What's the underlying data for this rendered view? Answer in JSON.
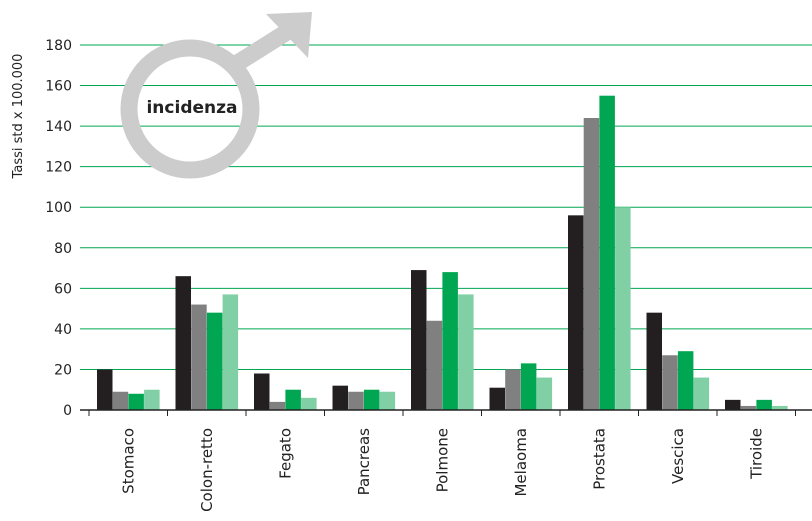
{
  "chart_data": {
    "type": "bar",
    "title": "",
    "badge_text": "incidenza",
    "badge_icon": "male-symbol-icon",
    "xlabel": "",
    "ylabel": "Tassi std x 100.000",
    "ylim": [
      0,
      180
    ],
    "yticks": [
      0,
      20,
      40,
      60,
      80,
      100,
      120,
      140,
      160,
      180
    ],
    "grid": true,
    "categories": [
      "Stomaco",
      "Colon-retto",
      "Fegato",
      "Pancreas",
      "Polmone",
      "Melaoma",
      "Prostata",
      "Vescica",
      "Tiroide"
    ],
    "series": [
      {
        "color": "#231f20",
        "values": [
          20,
          66,
          18,
          12,
          69,
          11,
          96,
          48,
          5
        ]
      },
      {
        "color": "#808080",
        "values": [
          9,
          52,
          4,
          9,
          44,
          20,
          144,
          27,
          2
        ]
      },
      {
        "color": "#00a651",
        "values": [
          8,
          48,
          10,
          10,
          68,
          23,
          155,
          29,
          5
        ]
      },
      {
        "color": "#80cfa5",
        "values": [
          10,
          57,
          6,
          9,
          57,
          16,
          100,
          16,
          2
        ]
      }
    ],
    "colors": {
      "grid": "#00a651",
      "axis": "#222222",
      "badge": "#cccccc"
    }
  }
}
